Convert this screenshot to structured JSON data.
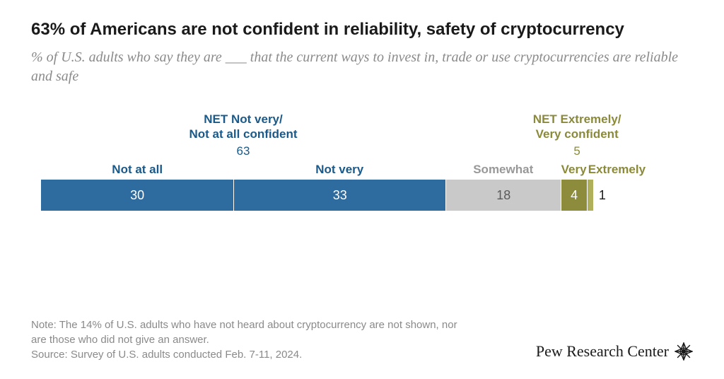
{
  "title": "63% of Americans are not confident in reliability, safety of cryptocurrency",
  "subtitle": "% of U.S. adults who say they are ___ that the current ways to invest in, trade or use cryptocurrencies are reliable and safe",
  "chart": {
    "type": "stacked-bar-horizontal",
    "total_width_pct": 86,
    "background_color": "#ffffff",
    "net_left": {
      "label_line1": "NET Not very/",
      "label_line2": "Not at all confident",
      "value": 63,
      "color": "#1a5a8a"
    },
    "net_right": {
      "label_line1": "NET Extremely/",
      "label_line2": "Very confident",
      "value": 5,
      "color": "#8a8a3a"
    },
    "segments": [
      {
        "label": "Not at all",
        "value": 30,
        "color": "#2e6b9e",
        "text_color": "#ffffff",
        "label_color": "#1a5a8a"
      },
      {
        "label": "Not very",
        "value": 33,
        "color": "#2e6b9e",
        "text_color": "#ffffff",
        "label_color": "#1a5a8a"
      },
      {
        "label": "Somewhat",
        "value": 18,
        "color": "#c9c9c9",
        "text_color": "#5a5a5a",
        "label_color": "#989898"
      },
      {
        "label": "Very",
        "value": 4,
        "color": "#8c8c3c",
        "text_color": "#ffffff",
        "label_color": "#8a8a3a"
      },
      {
        "label": "Extremely",
        "value": 1,
        "color": "#b0b05a",
        "text_color": "#1a1a1a",
        "label_color": "#8a8a3a",
        "value_outside": true
      }
    ]
  },
  "note": "Note: The 14% of U.S. adults who have not heard about cryptocurrency are not shown, nor are those who did not give an answer.",
  "source": "Source: Survey of U.S. adults conducted Feb. 7-11, 2024.",
  "brand": "Pew Research Center"
}
